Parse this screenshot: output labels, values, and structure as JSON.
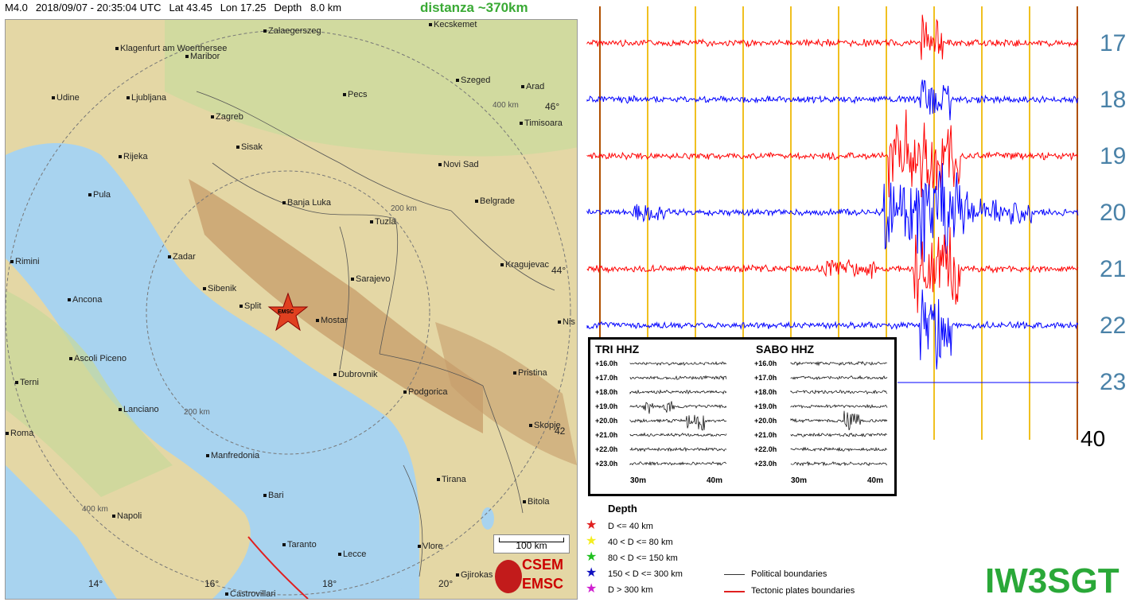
{
  "header": {
    "mag": "M4.0",
    "datetime": "2018/09/07 - 20:35:04 UTC",
    "lat": "Lat 43.45",
    "lon": "Lon 17.25",
    "depth": "Depth   8.0 km",
    "distance": "distanza ~370km"
  },
  "map": {
    "cities": [
      "Zalaegerszeg",
      "Kecskemet",
      "Klagenfurt am Woerthersee",
      "Maribor",
      "Szeged",
      "Arad",
      "Udine",
      "Ljubljana",
      "Pecs",
      "Timisoara",
      "Zagreb",
      "Sisak",
      "Rijeka",
      "Novi Sad",
      "Pula",
      "Belgrade",
      "Banja Luka",
      "Tuzla",
      "Zadar",
      "Rimini",
      "Kragujevac",
      "Sarajevo",
      "Sibenik",
      "Ancona",
      "Split",
      "Mostar",
      "Nis",
      "Ascoli Piceno",
      "Dubrovnik",
      "Pristina",
      "Terni",
      "Podgorica",
      "Lanciano",
      "Skopje",
      "Roma",
      "Manfredonia",
      "Tirana",
      "Bari",
      "Bitola",
      "Napoli",
      "Taranto",
      "Lecce",
      "Vlore",
      "Gjirokas",
      "Castrovillari"
    ],
    "grid_labels": [
      "46°",
      "44°",
      "42",
      "14°",
      "16°",
      "18°",
      "20°"
    ],
    "ring_labels": [
      "400 km",
      "200 km",
      "200 km",
      "400 km"
    ],
    "epicenter_label": "EMSC",
    "scale": "100 km",
    "logo_top": "CSEM",
    "logo_bottom": "EMSC"
  },
  "seismogram": {
    "hours": [
      "17",
      "18",
      "19",
      "20",
      "21",
      "22",
      "23"
    ],
    "minute_label": "40",
    "trace_colors": [
      "#ff0000",
      "#0000ff"
    ],
    "line_colors": {
      "minute": "#f0c020",
      "boundary": "#b05000"
    }
  },
  "inset": {
    "left_title": "TRI HHZ",
    "right_title": "SABO HHZ",
    "hour_labels": [
      "+16.0h",
      "+17.0h",
      "+18.0h",
      "+19.0h",
      "+20.0h",
      "+21.0h",
      "+22.0h",
      "+23.0h"
    ],
    "minute_labels": [
      "30m",
      "40m"
    ]
  },
  "legend": {
    "depth_title": "Depth",
    "depth_rows": [
      {
        "label": "D <= 40 km",
        "color": "#e02020"
      },
      {
        "label": "40 < D <= 80 km",
        "color": "#f4ee20"
      },
      {
        "label": "80 < D <= 150 km",
        "color": "#20c020"
      },
      {
        "label": "150 < D <= 300 km",
        "color": "#1010c0"
      },
      {
        "label": "D > 300 km",
        "color": "#d020d0"
      }
    ],
    "political": "Political boundaries",
    "tectonic": "Tectonic plates boundaries"
  },
  "callsign": "IW3SGT"
}
